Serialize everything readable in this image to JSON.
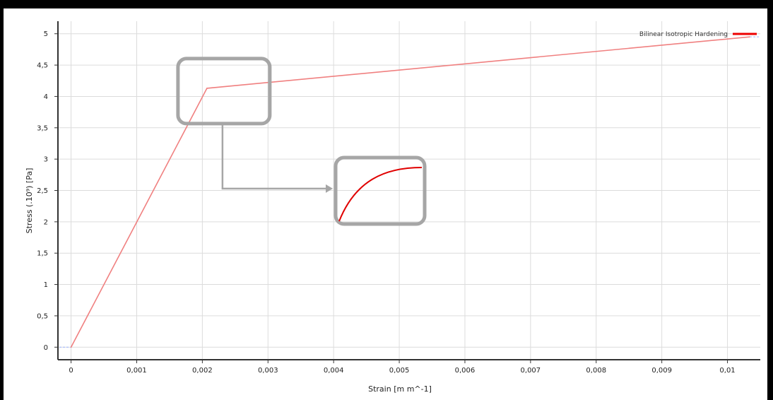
{
  "chart_data": {
    "type": "line",
    "x": [
      0,
      0.00207,
      0.01034
    ],
    "series": [
      {
        "name": "Bilinear Isotropic Hardening",
        "values": [
          0,
          4.13,
          4.95
        ],
        "color": "#f08080"
      }
    ],
    "xlabel": "Strain  [m m^-1]",
    "ylabel": "Stress  (.10⁹)  [Pa]",
    "xlim": [
      -0.0002,
      0.0105
    ],
    "ylim": [
      -0.2,
      5.2
    ],
    "xticks": [
      0,
      0.001,
      0.002,
      0.003,
      0.004,
      0.005,
      0.006,
      0.007,
      0.008,
      0.009,
      0.01
    ],
    "xtick_labels": [
      "0",
      "0,001",
      "0,002",
      "0,003",
      "0,004",
      "0,005",
      "0,006",
      "0,007",
      "0,008",
      "0,009",
      "0,01"
    ],
    "yticks": [
      0,
      0.5,
      1,
      1.5,
      2,
      2.5,
      3,
      3.5,
      4,
      4.5,
      5
    ],
    "ytick_labels": [
      "0",
      "0,5",
      "1",
      "1,5",
      "2",
      "2,5",
      "3",
      "3,5",
      "4",
      "4,5",
      "5"
    ],
    "grid": true,
    "legend_position": "top-right",
    "legend_color": "#ee0000",
    "callout_color": "#a6a6a6",
    "inset_curve_color": "#e00000"
  }
}
